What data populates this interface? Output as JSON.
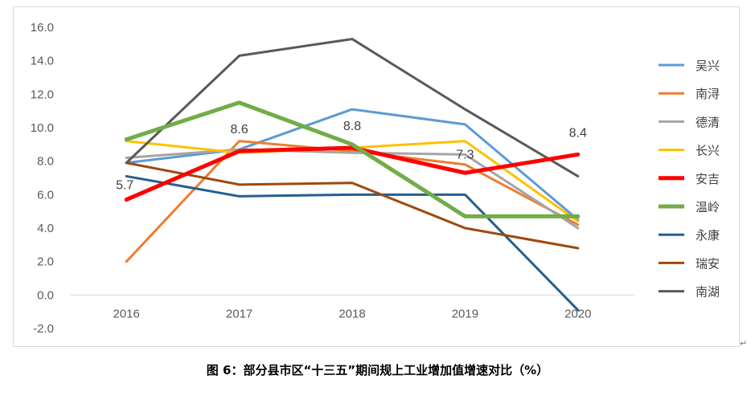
{
  "caption": "图 6：部分县市区“十三五”期间规上工业增加值增速对比（%）",
  "chart_data": {
    "type": "line",
    "x": [
      "2016",
      "2017",
      "2018",
      "2019",
      "2020"
    ],
    "ylim": [
      -2.0,
      16.0
    ],
    "yticks": [
      "-2.0",
      "0.0",
      "2.0",
      "4.0",
      "6.0",
      "8.0",
      "10.0",
      "12.0",
      "14.0",
      "16.0"
    ],
    "grid": false,
    "legend": "right",
    "series": [
      {
        "name": "吴兴",
        "color": "#5b9bd5",
        "width": 3,
        "values": [
          7.9,
          8.7,
          11.1,
          10.2,
          4.5
        ]
      },
      {
        "name": "南浔",
        "color": "#ed7d31",
        "width": 3,
        "values": [
          2.0,
          9.2,
          8.6,
          7.8,
          4.2
        ]
      },
      {
        "name": "德清",
        "color": "#a5a5a5",
        "width": 3,
        "values": [
          8.2,
          8.7,
          8.5,
          8.4,
          4.0
        ]
      },
      {
        "name": "长兴",
        "color": "#ffc000",
        "width": 3,
        "values": [
          9.2,
          8.5,
          8.8,
          9.2,
          4.4
        ]
      },
      {
        "name": "安吉",
        "color": "#ff0000",
        "width": 5,
        "values": [
          5.7,
          8.6,
          8.8,
          7.3,
          8.4
        ]
      },
      {
        "name": "温岭",
        "color": "#70ad47",
        "width": 5,
        "values": [
          9.3,
          11.5,
          9.0,
          4.7,
          4.7
        ]
      },
      {
        "name": "永康",
        "color": "#255e91",
        "width": 3,
        "values": [
          7.1,
          5.9,
          6.0,
          6.0,
          -0.9
        ]
      },
      {
        "name": "瑞安",
        "color": "#9e480e",
        "width": 3,
        "values": [
          7.9,
          6.6,
          6.7,
          4.0,
          2.8
        ]
      },
      {
        "name": "南湖",
        "color": "#595959",
        "width": 3,
        "values": [
          7.9,
          14.3,
          15.3,
          11.1,
          7.1
        ]
      }
    ],
    "data_labels": [
      {
        "series": "安吉",
        "x": "2016",
        "text": "5.7"
      },
      {
        "series": "安吉",
        "x": "2017",
        "text": "8.6"
      },
      {
        "series": "安吉",
        "x": "2018",
        "text": "8.8"
      },
      {
        "series": "安吉",
        "x": "2019",
        "text": "7.3"
      },
      {
        "series": "安吉",
        "x": "2020",
        "text": "8.4"
      }
    ]
  }
}
